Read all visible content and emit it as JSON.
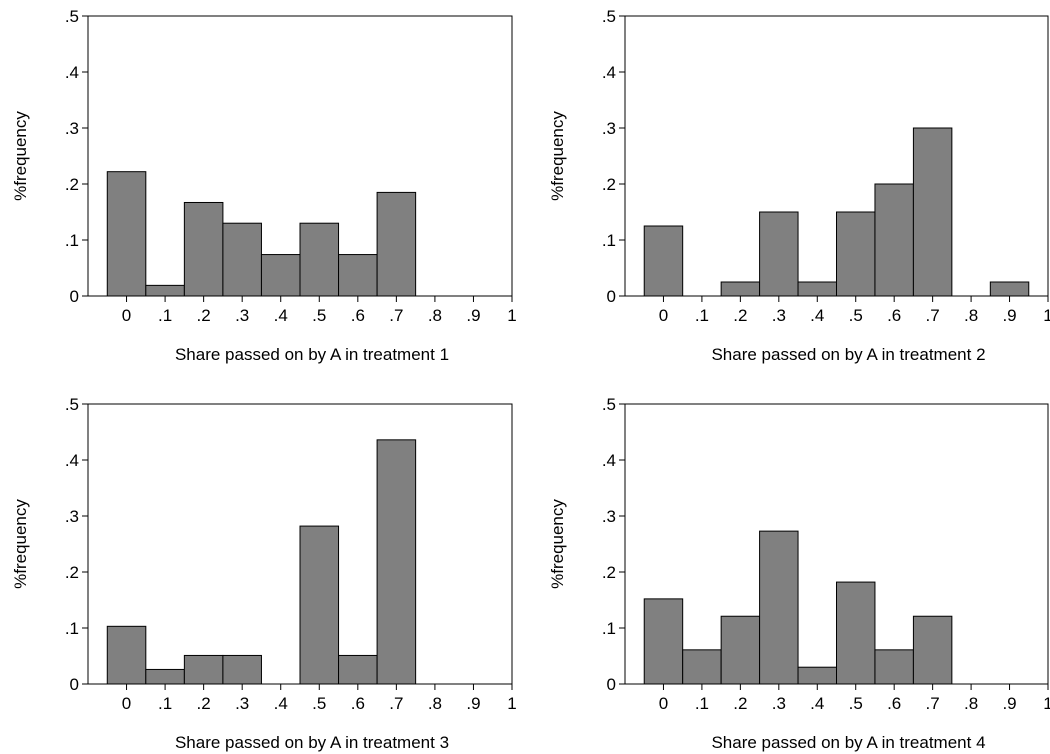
{
  "chart_data": [
    {
      "type": "bar",
      "xlabel": "Share passed on by A in treatment 1",
      "ylabel": "%frequency",
      "x_ticks": [
        "0",
        ".1",
        ".2",
        ".3",
        ".4",
        ".5",
        ".6",
        ".7",
        ".8",
        ".9",
        "1"
      ],
      "y_ticks": [
        "0",
        ".1",
        ".2",
        ".3",
        ".4",
        ".5"
      ],
      "ylim": [
        0,
        0.5
      ],
      "xlim": [
        -0.1,
        1.0
      ],
      "bar_width": 0.1,
      "x": [
        0,
        0.1,
        0.2,
        0.3,
        0.4,
        0.5,
        0.6,
        0.7
      ],
      "values": [
        0.222,
        0.019,
        0.167,
        0.13,
        0.074,
        0.13,
        0.074,
        0.185
      ],
      "grid": false
    },
    {
      "type": "bar",
      "xlabel": "Share passed on by A in treatment 2",
      "ylabel": "%frequency",
      "x_ticks": [
        "0",
        ".1",
        ".2",
        ".3",
        ".4",
        ".5",
        ".6",
        ".7",
        ".8",
        ".9",
        "1"
      ],
      "y_ticks": [
        "0",
        ".1",
        ".2",
        ".3",
        ".4",
        ".5"
      ],
      "ylim": [
        0,
        0.5
      ],
      "xlim": [
        -0.1,
        1.0
      ],
      "bar_width": 0.1,
      "x": [
        0,
        0.1,
        0.2,
        0.3,
        0.4,
        0.5,
        0.6,
        0.7,
        0.8,
        0.9
      ],
      "values": [
        0.125,
        0,
        0.025,
        0.15,
        0.025,
        0.15,
        0.2,
        0.3,
        0,
        0.025
      ],
      "grid": false
    },
    {
      "type": "bar",
      "xlabel": "Share passed on by A in treatment 3",
      "ylabel": "%frequency",
      "x_ticks": [
        "0",
        ".1",
        ".2",
        ".3",
        ".4",
        ".5",
        ".6",
        ".7",
        ".8",
        ".9",
        "1"
      ],
      "y_ticks": [
        "0",
        ".1",
        ".2",
        ".3",
        ".4",
        ".5"
      ],
      "ylim": [
        0,
        0.5
      ],
      "xlim": [
        -0.1,
        1.0
      ],
      "bar_width": 0.1,
      "x": [
        0,
        0.1,
        0.2,
        0.3,
        0.4,
        0.5,
        0.6,
        0.7
      ],
      "values": [
        0.103,
        0.026,
        0.051,
        0.051,
        0,
        0.282,
        0.051,
        0.436
      ],
      "grid": false
    },
    {
      "type": "bar",
      "xlabel": "Share passed on by A in treatment 4",
      "ylabel": "%frequency",
      "x_ticks": [
        "0",
        ".1",
        ".2",
        ".3",
        ".4",
        ".5",
        ".6",
        ".7",
        ".8",
        ".9",
        "1"
      ],
      "y_ticks": [
        "0",
        ".1",
        ".2",
        ".3",
        ".4",
        ".5"
      ],
      "ylim": [
        0,
        0.5
      ],
      "xlim": [
        -0.1,
        1.0
      ],
      "bar_width": 0.1,
      "x": [
        0,
        0.1,
        0.2,
        0.3,
        0.4,
        0.5,
        0.6,
        0.7
      ],
      "values": [
        0.152,
        0.061,
        0.121,
        0.273,
        0.03,
        0.182,
        0.061,
        0.121
      ],
      "grid": false
    }
  ],
  "colors": {
    "bar_fill": "#808080",
    "bar_stroke": "#000000",
    "axis": "#000000",
    "background": "#ffffff"
  }
}
